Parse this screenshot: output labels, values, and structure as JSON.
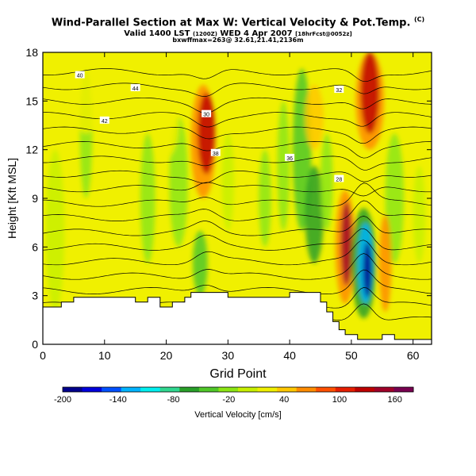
{
  "header": {
    "title_text": "Wind-Parallel Section at Max W: Vertical Velocity & Pot.Temp.",
    "title_superscript": "(C)",
    "valid_line_a": "Valid 1400 LST",
    "valid_line_b": "(1200Z)",
    "valid_line_c": "WED 4 Apr 2007",
    "valid_line_d": "[18hrFcst@0052z]",
    "location_line": "bxwffmax=263@ 32.61,21.41,2136m"
  },
  "chart_data": {
    "type": "heatmap",
    "xlabel": "Grid Point",
    "ylabel": "Height [Kft MSL]",
    "xlim": [
      0,
      63
    ],
    "ylim": [
      0,
      18
    ],
    "x_ticks": [
      0,
      10,
      20,
      30,
      40,
      50,
      60
    ],
    "y_ticks": [
      0,
      3,
      6,
      9,
      12,
      15,
      18
    ],
    "colorbar": {
      "label": "Vertical Velocity [cm/s]",
      "range": [
        -200,
        180
      ],
      "tick_values": [
        -200,
        -140,
        -80,
        -20,
        40,
        100,
        160
      ],
      "colors": [
        "#00008c",
        "#0000dc",
        "#0050ff",
        "#00b4ff",
        "#00f0f0",
        "#30d890",
        "#28a028",
        "#50c828",
        "#8ce614",
        "#c8f000",
        "#f0f000",
        "#ffc800",
        "#ff8c00",
        "#ff5000",
        "#e61e00",
        "#be0000",
        "#a00028",
        "#780050"
      ]
    },
    "wind_maxima": [
      {
        "x": 26.5,
        "y": 13.2,
        "w": 165
      },
      {
        "x": 53,
        "y": 14.5,
        "w": 170
      },
      {
        "x": 49.3,
        "y": 6.2,
        "w": 160
      },
      {
        "x": 52.5,
        "y": 4.5,
        "w": -190
      }
    ],
    "theta_labels": [
      "40",
      "44",
      "38",
      "42",
      "36",
      "32",
      "30",
      "28"
    ],
    "terrain_kft": [
      [
        0,
        2.3
      ],
      [
        3,
        2.3
      ],
      [
        3,
        2.6
      ],
      [
        5,
        2.6
      ],
      [
        5,
        2.9
      ],
      [
        15,
        2.9
      ],
      [
        15,
        2.6
      ],
      [
        17,
        2.6
      ],
      [
        17,
        2.9
      ],
      [
        19,
        2.9
      ],
      [
        19,
        2.3
      ],
      [
        21,
        2.3
      ],
      [
        21,
        2.6
      ],
      [
        23,
        2.6
      ],
      [
        23,
        2.9
      ],
      [
        24,
        2.9
      ],
      [
        24,
        3.2
      ],
      [
        30,
        3.2
      ],
      [
        30,
        2.9
      ],
      [
        40,
        2.9
      ],
      [
        40,
        3.2
      ],
      [
        45,
        3.2
      ],
      [
        45,
        2.6
      ],
      [
        46,
        2.6
      ],
      [
        46,
        2.0
      ],
      [
        47,
        2.0
      ],
      [
        47,
        1.4
      ],
      [
        48,
        1.4
      ],
      [
        48,
        0.9
      ],
      [
        49,
        0.9
      ],
      [
        49,
        0.6
      ],
      [
        51,
        0.6
      ],
      [
        51,
        0.3
      ],
      [
        55,
        0.3
      ],
      [
        55,
        0.6
      ],
      [
        57,
        0.6
      ],
      [
        57,
        0.3
      ],
      [
        63,
        0.3
      ]
    ]
  }
}
